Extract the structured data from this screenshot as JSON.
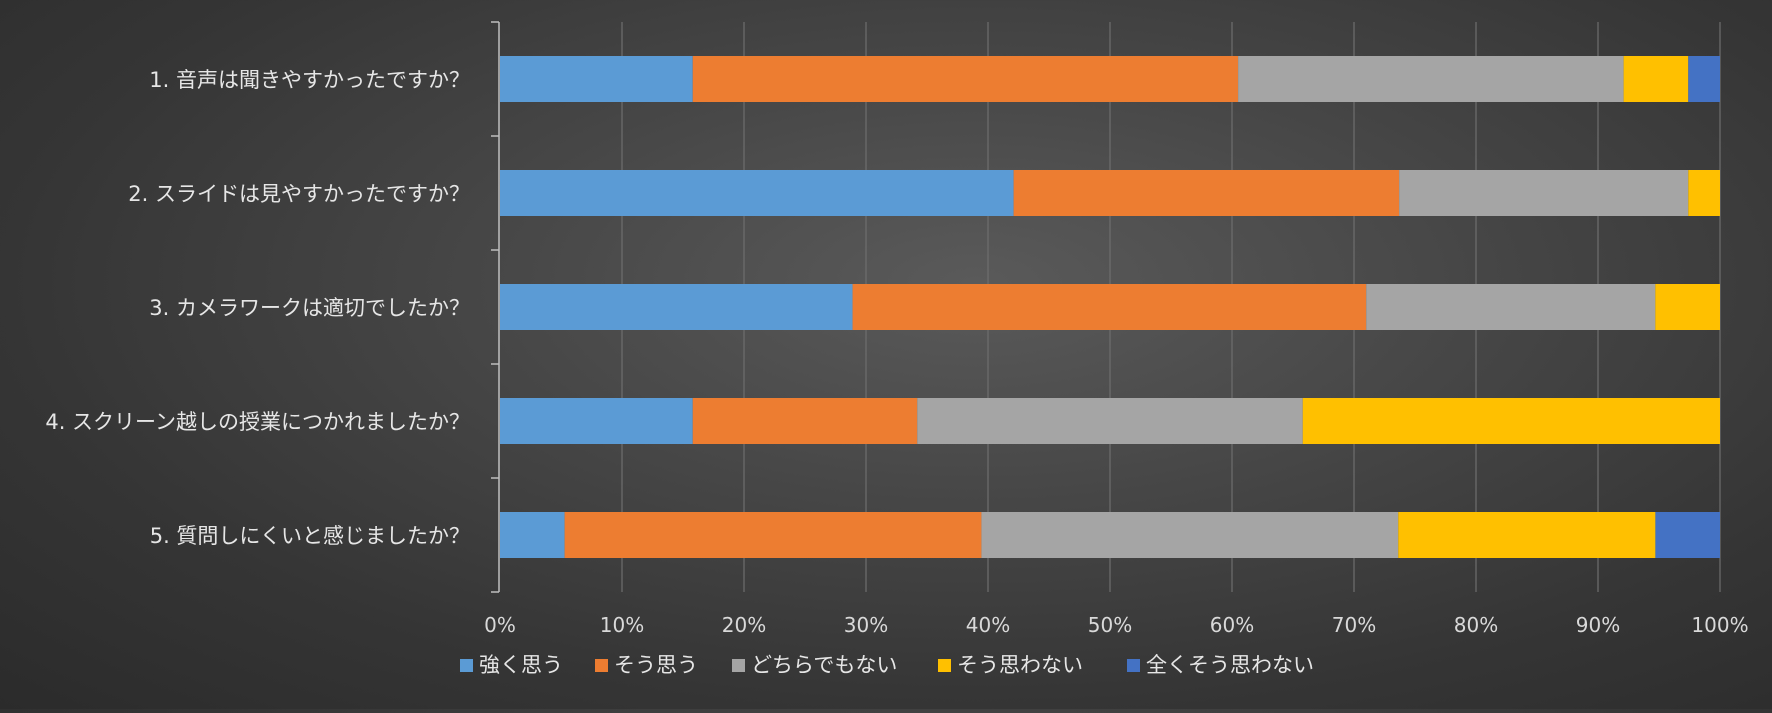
{
  "chart_data": {
    "type": "bar",
    "orientation": "horizontal",
    "stacked": "percent",
    "categories": [
      "1. 音声は聞きやすかったですか？",
      "2. スライドは見やすかったですか？",
      "3. カメラワークは適切でしたか？",
      "4. スクリーン越しの授業につかれましたか？",
      "5. 質問しにくいと感じましたか？"
    ],
    "series": [
      {
        "name": "強く思う",
        "color": "#5b9bd5",
        "values": [
          15.8,
          42.1,
          28.9,
          15.8,
          5.3
        ]
      },
      {
        "name": "そう思う",
        "color": "#ed7d31",
        "values": [
          44.7,
          31.6,
          42.1,
          18.4,
          34.2
        ]
      },
      {
        "name": "どちらでもない",
        "color": "#a5a5a5",
        "values": [
          31.6,
          23.7,
          23.7,
          31.6,
          34.2
        ]
      },
      {
        "name": "そう思わない",
        "color": "#ffc000",
        "values": [
          5.3,
          2.6,
          5.3,
          34.2,
          21.1
        ]
      },
      {
        "name": "全くそう思わない",
        "color": "#4472c4",
        "values": [
          2.6,
          0,
          0,
          0,
          5.3
        ]
      }
    ],
    "x_ticks": [
      "0%",
      "10%",
      "20%",
      "30%",
      "40%",
      "50%",
      "60%",
      "70%",
      "80%",
      "90%",
      "100%"
    ],
    "xlim": [
      0,
      100
    ],
    "title": "",
    "xlabel": "",
    "ylabel": "",
    "grid": "vertical",
    "legend_position": "bottom"
  }
}
